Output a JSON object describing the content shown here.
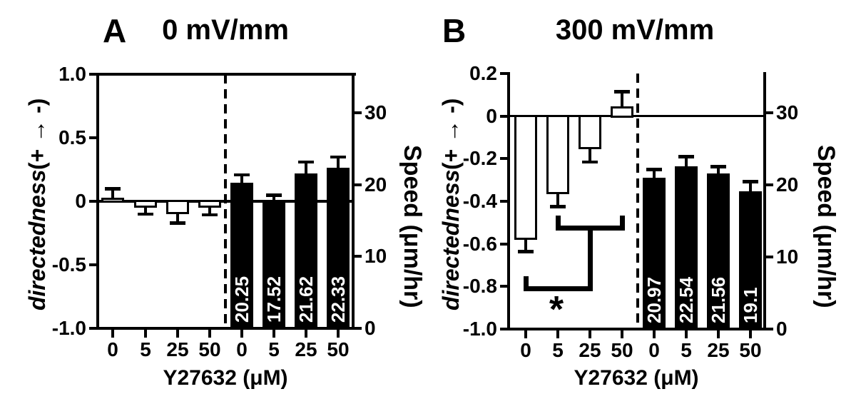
{
  "chart_data": [
    {
      "type": "bar",
      "panel_letter": "A",
      "title": "0 mV/mm",
      "xlabel": "Y27632 (μM)",
      "categories": [
        "0",
        "5",
        "25",
        "50"
      ],
      "x_tick_labels": [
        "0",
        "5",
        "25",
        "50",
        "0",
        "5",
        "25",
        "50"
      ],
      "ylabel_left_italic": "directedness",
      "ylabel_left_rest": "(+ → -)",
      "ylabel_right": "Speed (μm/hr)",
      "ylim_left": [
        -1.0,
        1.0
      ],
      "yticks_left": {
        "values": [
          1.0,
          0.5,
          0,
          -0.5,
          -1.0
        ],
        "labels": [
          "1.0",
          "0.5",
          "0",
          "-0.5",
          "-1.0"
        ]
      },
      "ylim_right": [
        0,
        35.4
      ],
      "yticks_right": {
        "values": [
          0,
          10,
          20,
          30
        ],
        "labels": [
          "0",
          "10",
          "20",
          "30"
        ]
      },
      "group_separator": "dashed",
      "series": [
        {
          "name": "directedness",
          "axis": "left",
          "bar_style": "open",
          "values": [
            0.03,
            -0.05,
            -0.1,
            -0.05
          ],
          "errors": [
            0.07,
            0.05,
            0.07,
            0.055
          ]
        },
        {
          "name": "speed",
          "axis": "right",
          "bar_style": "filled",
          "values": [
            20.25,
            17.52,
            21.62,
            22.33
          ],
          "errors": [
            1.1,
            1.0,
            1.5,
            1.5
          ],
          "value_labels": [
            "20.25",
            "17.52",
            "21.62",
            "22.33"
          ]
        }
      ],
      "significance": null
    },
    {
      "type": "bar",
      "panel_letter": "B",
      "title": "300 mV/mm",
      "xlabel": "Y27632 (μM)",
      "categories": [
        "0",
        "5",
        "25",
        "50"
      ],
      "x_tick_labels": [
        "0",
        "5",
        "25",
        "50",
        "0",
        "5",
        "25",
        "50"
      ],
      "ylabel_left_italic": "directedness",
      "ylabel_left_rest": " (+ → -)",
      "ylabel_right": "Speed (μm/hr)",
      "ylim_left": [
        -1.0,
        0.2
      ],
      "yticks_left": {
        "values": [
          0.2,
          0,
          -0.2,
          -0.4,
          -0.6,
          -0.8,
          -1.0
        ],
        "labels": [
          "0.2",
          "0",
          "-0.2",
          "-0.4",
          "-0.6",
          "-0.8",
          "-1.0"
        ]
      },
      "ylim_right": [
        0,
        35.4
      ],
      "yticks_right": {
        "values": [
          0,
          10,
          20,
          30
        ],
        "labels": [
          "0",
          "10",
          "20",
          "30"
        ]
      },
      "group_separator": "dashed",
      "series": [
        {
          "name": "directedness",
          "axis": "left",
          "bar_style": "open",
          "values": [
            -0.58,
            -0.365,
            -0.155,
            0.045
          ],
          "errors": [
            0.055,
            0.06,
            0.06,
            0.07
          ]
        },
        {
          "name": "speed",
          "axis": "right",
          "bar_style": "filled",
          "values": [
            20.97,
            22.54,
            21.56,
            19.1
          ],
          "errors": [
            1.1,
            1.3,
            0.9,
            1.3
          ],
          "value_labels": [
            "20.97",
            "22.54",
            "21.56",
            "19.1"
          ]
        }
      ],
      "significance": {
        "symbol": "*",
        "upper_bracket": {
          "from_category_index": 1,
          "to_category_index": 3,
          "y": -0.525
        },
        "lower_bracket": {
          "from_category_index": 0,
          "y": -0.81
        }
      }
    }
  ]
}
